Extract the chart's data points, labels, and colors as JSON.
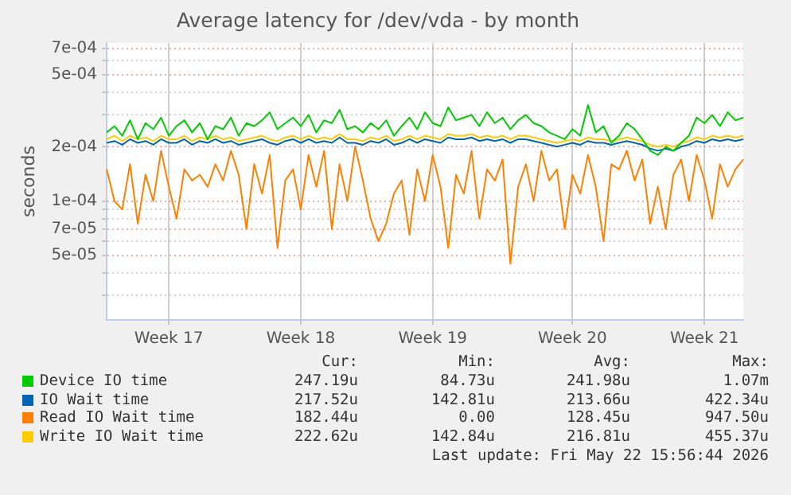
{
  "chart_data": {
    "type": "line",
    "title": "Average latency for /dev/vda - by month",
    "ylabel": "seconds",
    "log": "y",
    "grid": true,
    "legend": "bottom",
    "marker": "none",
    "line_style": "solid",
    "categories": [
      null,
      null,
      null,
      null,
      null,
      null,
      null,
      null,
      "Week 17",
      null,
      null,
      null,
      null,
      null,
      null,
      null,
      null,
      null,
      null,
      null,
      null,
      null,
      null,
      null,
      null,
      "Week 18",
      null,
      null,
      null,
      null,
      null,
      null,
      null,
      null,
      null,
      null,
      null,
      null,
      null,
      null,
      null,
      null,
      "Week 19",
      null,
      null,
      null,
      null,
      null,
      null,
      null,
      null,
      null,
      null,
      null,
      null,
      null,
      null,
      null,
      null,
      null,
      "Week 20",
      null,
      null,
      null,
      null,
      null,
      null,
      null,
      null,
      null,
      null,
      null,
      null,
      null,
      null,
      null,
      null,
      "Week 21",
      null,
      null,
      null,
      null,
      null
    ],
    "ylim": [
      2.2e-05,
      0.00075
    ],
    "yticks": [
      {
        "value": 3e-05,
        "label": null
      },
      {
        "value": 4e-05,
        "label": null
      },
      {
        "value": 5e-05,
        "label": "5e-05"
      },
      {
        "value": 6e-05,
        "label": null
      },
      {
        "value": 7e-05,
        "label": "7e-05"
      },
      {
        "value": 8e-05,
        "label": null
      },
      {
        "value": 9e-05,
        "label": null
      },
      {
        "value": 0.0001,
        "label": "1e-04"
      },
      {
        "value": 0.0002,
        "label": "2e-04"
      },
      {
        "value": 0.0003,
        "label": null
      },
      {
        "value": 0.0004,
        "label": null
      },
      {
        "value": 0.0005,
        "label": "5e-04"
      },
      {
        "value": 0.0006,
        "label": null
      },
      {
        "value": 0.0007,
        "label": "7e-04"
      }
    ],
    "series": [
      {
        "name": "Device IO time",
        "color": "#00cc00",
        "values": [
          0.00024,
          0.00026,
          0.00023,
          0.00028,
          0.00022,
          0.00027,
          0.00025,
          0.00029,
          0.00023,
          0.00026,
          0.00028,
          0.00024,
          0.00027,
          0.00022,
          0.00026,
          0.00025,
          0.00029,
          0.00023,
          0.00027,
          0.00026,
          0.00028,
          0.00031,
          0.00025,
          0.00027,
          0.00029,
          0.00026,
          0.0003,
          0.00024,
          0.00028,
          0.00027,
          0.00032,
          0.00025,
          0.00026,
          0.00024,
          0.00027,
          0.00025,
          0.00028,
          0.00023,
          0.00026,
          0.00029,
          0.00025,
          0.00031,
          0.00027,
          0.00026,
          0.00033,
          0.00028,
          0.00029,
          0.0003,
          0.00026,
          0.00031,
          0.00027,
          0.00029,
          0.00025,
          0.00028,
          0.0003,
          0.00027,
          0.00026,
          0.00024,
          0.00023,
          0.00022,
          0.00025,
          0.00023,
          0.00034,
          0.00024,
          0.00026,
          0.00021,
          0.00023,
          0.00027,
          0.00025,
          0.00022,
          0.00019,
          0.00018,
          0.0002,
          0.00019,
          0.00021,
          0.00023,
          0.00029,
          0.00027,
          0.0003,
          0.00026,
          0.00031,
          0.00028,
          0.00029
        ]
      },
      {
        "name": "IO Wait time",
        "color": "#0066b3",
        "values": [
          0.00021,
          0.000215,
          0.000205,
          0.00022,
          0.00021,
          0.000215,
          0.000205,
          0.00022,
          0.00021,
          0.00021,
          0.00022,
          0.000205,
          0.000215,
          0.00021,
          0.00022,
          0.00021,
          0.000215,
          0.000205,
          0.00021,
          0.000215,
          0.00022,
          0.00021,
          0.000205,
          0.000215,
          0.00022,
          0.00021,
          0.00022,
          0.00021,
          0.000215,
          0.00021,
          0.000225,
          0.00021,
          0.00021,
          0.000205,
          0.000215,
          0.00021,
          0.00022,
          0.000205,
          0.00021,
          0.00022,
          0.00021,
          0.00022,
          0.000215,
          0.00021,
          0.000225,
          0.00022,
          0.00022,
          0.000225,
          0.000215,
          0.00022,
          0.000215,
          0.00022,
          0.00021,
          0.00022,
          0.00022,
          0.000215,
          0.00021,
          0.000205,
          0.0002,
          0.000205,
          0.00021,
          0.000205,
          0.000215,
          0.00021,
          0.00021,
          0.000205,
          0.00021,
          0.000215,
          0.00021,
          0.000205,
          0.000195,
          0.00019,
          0.000195,
          0.00019,
          0.0002,
          0.000205,
          0.000215,
          0.00021,
          0.00022,
          0.000215,
          0.00022,
          0.000215,
          0.00022
        ]
      },
      {
        "name": "Read IO Wait time",
        "color": "#ff8000",
        "values": [
          0.00015,
          0.0001,
          9e-05,
          0.00016,
          7.5e-05,
          0.00014,
          0.0001,
          0.00019,
          0.00012,
          8e-05,
          0.00015,
          0.00013,
          0.00014,
          0.00012,
          0.00016,
          0.00013,
          0.00019,
          0.00014,
          7e-05,
          0.00016,
          0.00011,
          0.00018,
          5.5e-05,
          0.00013,
          0.00015,
          9e-05,
          0.00018,
          0.00012,
          0.00019,
          7e-05,
          0.00016,
          0.0001,
          0.0002,
          0.00013,
          8e-05,
          6e-05,
          7.5e-05,
          0.00011,
          0.00013,
          6.5e-05,
          0.00015,
          0.0001,
          0.00018,
          0.00012,
          5.5e-05,
          0.00014,
          0.00011,
          0.00019,
          8e-05,
          0.00015,
          0.00013,
          0.00017,
          4.5e-05,
          0.00012,
          0.00016,
          0.0001,
          0.00019,
          0.00013,
          0.00015,
          7e-05,
          0.00014,
          0.00011,
          0.00018,
          0.00012,
          6e-05,
          0.00016,
          0.00015,
          0.00019,
          0.00013,
          0.00017,
          7.5e-05,
          0.00012,
          7e-05,
          0.00014,
          0.00017,
          0.0001,
          0.00018,
          0.00013,
          8e-05,
          0.00016,
          0.00012,
          0.00015,
          0.00017
        ]
      },
      {
        "name": "Write IO Wait time",
        "color": "#ffcc00",
        "values": [
          0.00022,
          0.00023,
          0.000215,
          0.00023,
          0.00022,
          0.000225,
          0.000215,
          0.00023,
          0.00022,
          0.00022,
          0.00023,
          0.000215,
          0.000225,
          0.00022,
          0.00023,
          0.00022,
          0.000225,
          0.000215,
          0.00022,
          0.000225,
          0.00023,
          0.00022,
          0.000215,
          0.000225,
          0.00023,
          0.00022,
          0.00023,
          0.00022,
          0.000225,
          0.00022,
          0.000235,
          0.00022,
          0.00022,
          0.000215,
          0.000225,
          0.00022,
          0.00023,
          0.000215,
          0.00022,
          0.00023,
          0.00022,
          0.00023,
          0.000225,
          0.00022,
          0.000235,
          0.00023,
          0.00023,
          0.000235,
          0.000225,
          0.00023,
          0.000225,
          0.00023,
          0.00022,
          0.00023,
          0.00023,
          0.000225,
          0.00022,
          0.000215,
          0.00021,
          0.000215,
          0.00022,
          0.000215,
          0.000225,
          0.00022,
          0.00022,
          0.000215,
          0.00022,
          0.000225,
          0.00022,
          0.000215,
          0.000205,
          0.0002,
          0.000205,
          0.0002,
          0.00021,
          0.000215,
          0.000225,
          0.00022,
          0.00023,
          0.000225,
          0.00023,
          0.000225,
          0.00023
        ]
      }
    ],
    "annotations": [
      "Cur:",
      "Min:",
      "Avg:",
      "Max:",
      "247.19u",
      "84.73u",
      "241.98u",
      "1.07m",
      "217.52u",
      "142.81u",
      "213.66u",
      "422.34u",
      "182.44u",
      "0.00",
      "128.45u",
      "947.50u",
      "222.62u",
      "142.84u",
      "216.81u",
      "455.37u",
      "Last update: Fri May 22 15:56:44 2026"
    ]
  }
}
